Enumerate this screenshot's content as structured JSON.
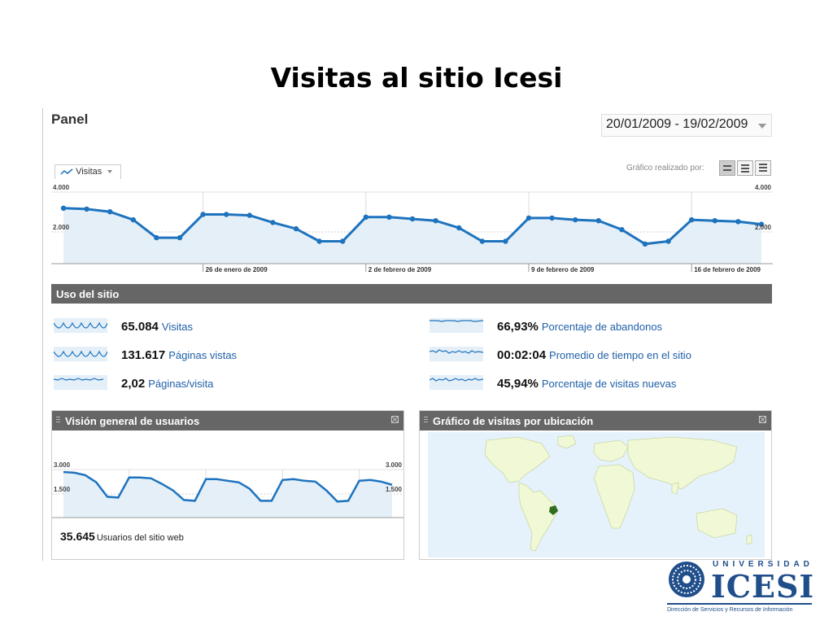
{
  "slide": {
    "title": "Visitas al sitio Icesi"
  },
  "header": {
    "title": "Panel",
    "date_range": "20/01/2009 - 19/02/2009"
  },
  "chart_controls": {
    "metric_tab": "Visitas",
    "graph_by_label": "Gráfico realizado por:"
  },
  "chart_data": [
    {
      "type": "area",
      "series": [
        {
          "values": [
            3100,
            3050,
            2900,
            2450,
            1450,
            1450,
            2750,
            2750,
            2700,
            2300,
            1950,
            1250,
            1250,
            2600,
            2600,
            2500,
            2400,
            2000,
            1250,
            1250,
            2550,
            2550,
            2450,
            2400,
            1900,
            1100,
            1250,
            2450,
            2400,
            2350,
            2200
          ]
        }
      ],
      "x_tick_labels": [
        "26 de enero de 2009",
        "2 de febrero de 2009",
        "9 de febrero de 2009",
        "16 de febrero de 2009"
      ],
      "y_tick_labels": [
        "4.000",
        "2.000"
      ],
      "ylim": [
        0,
        4000
      ],
      "grid": true
    },
    {
      "type": "area",
      "series": [
        {
          "values": [
            2850,
            2800,
            2650,
            2200,
            1300,
            1250,
            2500,
            2500,
            2450,
            2100,
            1700,
            1100,
            1050,
            2400,
            2400,
            2300,
            2200,
            1800,
            1050,
            1050,
            2350,
            2400,
            2300,
            2250,
            1700,
            1000,
            1050,
            2300,
            2350,
            2250,
            2050
          ]
        }
      ],
      "y_tick_labels": [
        "3.000",
        "1.500"
      ],
      "ylim": [
        0,
        3000
      ],
      "grid": true
    }
  ],
  "usage": {
    "title": "Uso del sitio",
    "stats": [
      {
        "value": "65.084",
        "label": "Visitas"
      },
      {
        "value": "131.617",
        "label": "Páginas vistas"
      },
      {
        "value": "2,02",
        "label": "Páginas/visita"
      },
      {
        "value": "66,93%",
        "label": "Porcentaje de abandonos"
      },
      {
        "value": "00:02:04",
        "label": "Promedio de tiempo en el sitio"
      },
      {
        "value": "45,94%",
        "label": "Porcentaje de visitas nuevas"
      }
    ]
  },
  "users_widget": {
    "title": "Visión general de usuarios",
    "total_value": "35.645",
    "total_label": "Usuarios del sitio web"
  },
  "map_widget": {
    "title": "Gráfico de visitas por ubicación"
  },
  "colors": {
    "line": "#1e73be",
    "fill": "#e4eff8",
    "map_water": "#e6f2fb",
    "map_land": "#f1f8d5",
    "map_highlight": "#2f6e20",
    "bar": "#666666"
  },
  "logo": {
    "university": "UNIVERSIDAD",
    "name": "ICESI",
    "tagline": "Dirección de Servicios y Recursos de Información"
  }
}
